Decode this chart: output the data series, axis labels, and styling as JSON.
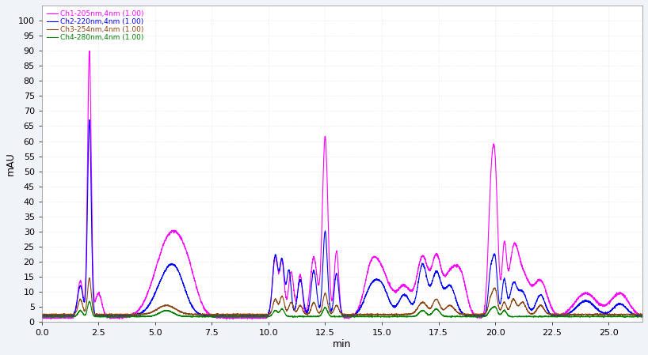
{
  "title": "",
  "ylabel": "mAU",
  "xlabel": "min",
  "xlim": [
    0.0,
    26.5
  ],
  "ylim": [
    0,
    105
  ],
  "yticks": [
    0,
    5,
    10,
    15,
    20,
    25,
    30,
    35,
    40,
    45,
    50,
    55,
    60,
    65,
    70,
    75,
    80,
    85,
    90,
    95,
    100
  ],
  "xticks": [
    0.0,
    2.5,
    5.0,
    7.5,
    10.0,
    12.5,
    15.0,
    17.5,
    20.0,
    22.5,
    25.0
  ],
  "background_color": "#f0f4f8",
  "plot_bg_color": "#ffffff",
  "channels": [
    {
      "label": "Ch1-205nm,4nm (1.00)",
      "color": "#ff00ff"
    },
    {
      "label": "Ch2-220nm,4nm (1.00)",
      "color": "#0000ff"
    },
    {
      "label": "Ch3-254nm,4nm (1.00)",
      "color": "#8B4513"
    },
    {
      "label": "Ch4-280nm,4nm (1.00)",
      "color": "#008000"
    }
  ]
}
